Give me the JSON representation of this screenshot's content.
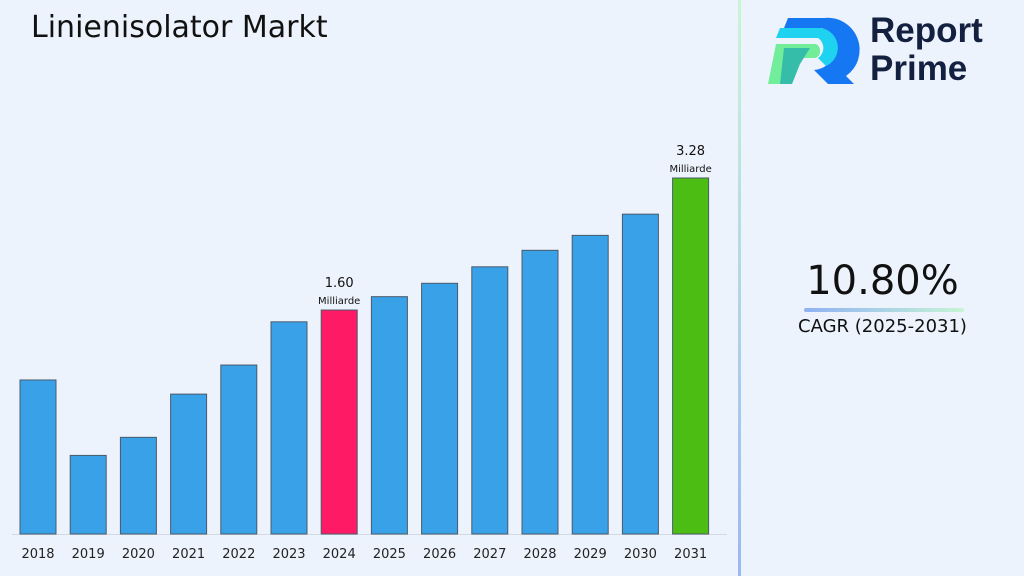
{
  "title": "Linienisolator Markt",
  "brand": {
    "line1": "Report",
    "line2": "Prime"
  },
  "cagr": {
    "value": "10.80%",
    "label": "CAGR (2025-2031)"
  },
  "colors": {
    "bar": "#38a1e8",
    "highlight_2024": "#ff1a66",
    "highlight_2031": "#4cbe13"
  },
  "chart_data": {
    "type": "bar",
    "categories": [
      "2018",
      "2019",
      "2020",
      "2021",
      "2022",
      "2023",
      "2024",
      "2025",
      "2026",
      "2027",
      "2028",
      "2029",
      "2030",
      "2031"
    ],
    "values": [
      0.71,
      -0.25,
      -0.02,
      0.53,
      0.9,
      1.45,
      1.6,
      1.77,
      1.94,
      2.15,
      2.36,
      2.55,
      2.82,
      3.28
    ],
    "ylim": [
      -1.25,
      3.6
    ],
    "grid": false,
    "annotations": [
      {
        "category": "2024",
        "value": "1.60",
        "unit": "Milliarde"
      },
      {
        "category": "2031",
        "value": "3.28",
        "unit": "Milliarde"
      }
    ]
  }
}
